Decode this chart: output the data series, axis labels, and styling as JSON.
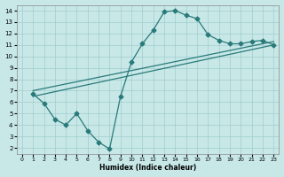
{
  "xlabel": "Humidex (Indice chaleur)",
  "bg_color": "#c8e8e8",
  "line_color": "#2a7a7a",
  "xlim": [
    -0.5,
    23.5
  ],
  "ylim": [
    1.5,
    14.5
  ],
  "xticks": [
    0,
    1,
    2,
    3,
    4,
    5,
    6,
    7,
    8,
    9,
    10,
    11,
    12,
    13,
    14,
    15,
    16,
    17,
    18,
    19,
    20,
    21,
    22,
    23
  ],
  "yticks": [
    2,
    3,
    4,
    5,
    6,
    7,
    8,
    9,
    10,
    11,
    12,
    13,
    14
  ],
  "curve_x": [
    1,
    2,
    3,
    4,
    5,
    6,
    7,
    8,
    9,
    10,
    11,
    12,
    13,
    14,
    15,
    16,
    17,
    18,
    19,
    20,
    21,
    22,
    23
  ],
  "curve_y": [
    6.7,
    5.9,
    4.5,
    4.0,
    5.0,
    3.5,
    2.5,
    1.9,
    6.5,
    9.5,
    11.1,
    12.3,
    13.9,
    14.0,
    13.6,
    13.3,
    11.9,
    11.4,
    11.1,
    11.1,
    11.3,
    11.4,
    11.0
  ],
  "ref_line1_x": [
    1,
    23
  ],
  "ref_line1_y": [
    6.5,
    11.0
  ],
  "ref_line2_x": [
    1,
    23
  ],
  "ref_line2_y": [
    7.0,
    11.3
  ],
  "grid_color": "#a0cccc",
  "markersize": 2.5,
  "lw": 0.9
}
